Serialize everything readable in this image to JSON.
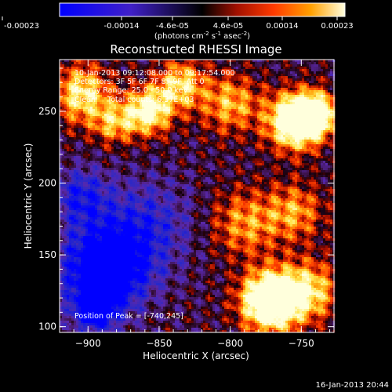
{
  "chart_data": {
    "type": "heatmap",
    "title": "Reconstructed RHESSI Image",
    "xlabel": "Heliocentric X (arcsec)",
    "ylabel": "Heliocentric Y (arcsec)",
    "xlim": [
      -920,
      -727
    ],
    "ylim": [
      96,
      286
    ],
    "x_ticks": [
      -900,
      -850,
      -800,
      -750
    ],
    "y_ticks": [
      100,
      150,
      200,
      250
    ],
    "colorbar": {
      "ticks": [
        "-0.00023",
        "-0.00014",
        "-4.6e-05",
        "4.6e-05",
        "0.00014",
        "0.00023"
      ],
      "values": [
        -0.00023,
        -0.00014,
        -4.6e-05,
        4.6e-05,
        0.00014,
        0.00023
      ],
      "unit_parts": [
        "(photons cm",
        "-2",
        " s",
        "-1",
        " asec",
        "-2",
        ")"
      ]
    },
    "annotations": [
      "10-Jan-2013 09:12:08.000 to 09:17:54.000",
      "Detectors: 3F 5F 6F 7F 8F 9F, Att 0",
      "Energy Range: 25.0 - 50.0 keV",
      "Clean     Total counts: 6.37E+03"
    ],
    "peak_label": "Position of Peak = [-740,245]",
    "peak": [
      -740,
      245
    ],
    "hotspots": [
      {
        "x": -772,
        "y": 118,
        "amp": 2.3,
        "s": 14
      },
      {
        "x": -745,
        "y": 125,
        "amp": 1.1,
        "s": 14
      },
      {
        "x": -755,
        "y": 243,
        "amp": 2.0,
        "s": 13
      },
      {
        "x": -740,
        "y": 248,
        "amp": 1.6,
        "s": 10
      },
      {
        "x": -858,
        "y": 250,
        "amp": 1.5,
        "s": 11
      },
      {
        "x": -835,
        "y": 268,
        "amp": 1.1,
        "s": 12
      },
      {
        "x": -905,
        "y": 262,
        "amp": 1.2,
        "s": 14
      },
      {
        "x": -882,
        "y": 242,
        "amp": 0.9,
        "s": 10
      },
      {
        "x": -790,
        "y": 172,
        "amp": 0.8,
        "s": 16
      },
      {
        "x": -755,
        "y": 180,
        "amp": 0.8,
        "s": 14
      },
      {
        "x": -800,
        "y": 255,
        "amp": 0.9,
        "s": 14
      }
    ],
    "coldspots": [
      {
        "x": -888,
        "y": 140,
        "amp": 1.7,
        "s": 20
      },
      {
        "x": -895,
        "y": 112,
        "amp": 1.2,
        "s": 10
      },
      {
        "x": -860,
        "y": 170,
        "amp": 0.7,
        "s": 22
      },
      {
        "x": -905,
        "y": 190,
        "amp": 0.8,
        "s": 14
      }
    ]
  },
  "footer_date": "16-Jan-2013 20:44"
}
